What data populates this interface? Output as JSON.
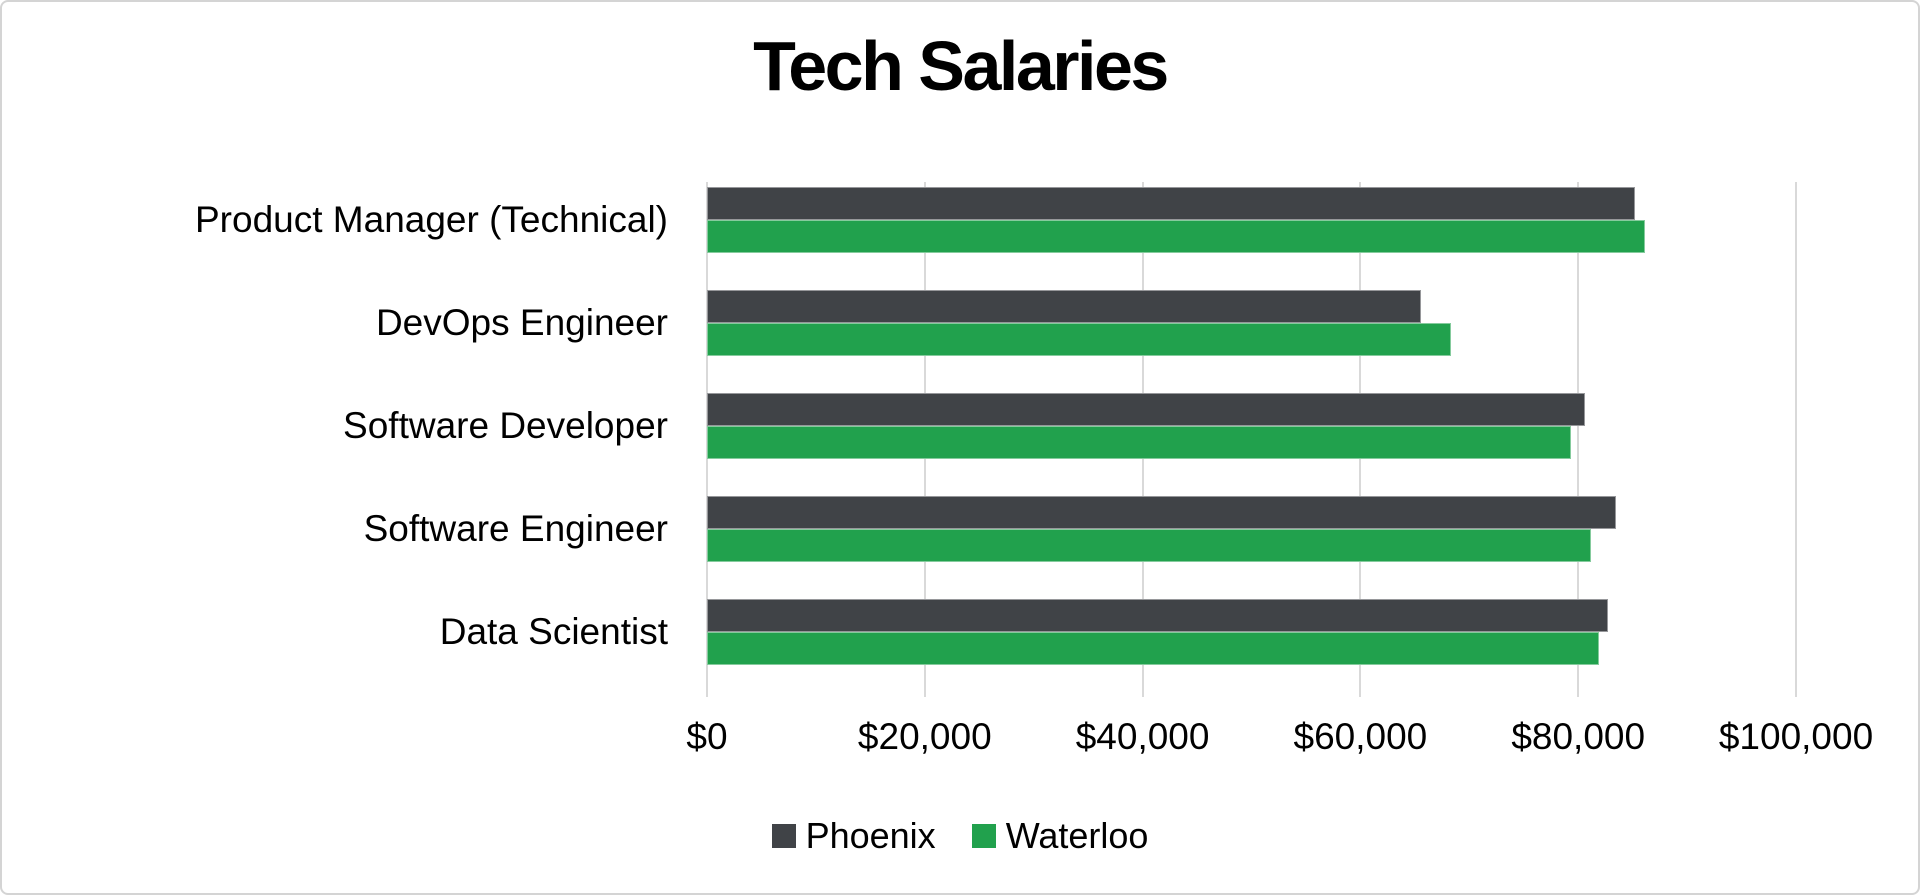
{
  "chart_data": {
    "type": "bar",
    "orientation": "horizontal",
    "title": "Tech Salaries",
    "categories": [
      "Product Manager (Technical)",
      "DevOps Engineer",
      "Software Developer",
      "Software Engineer",
      "Data Scientist"
    ],
    "series": [
      {
        "name": "Phoenix",
        "color": "#404347",
        "values": [
          85200,
          65600,
          80600,
          83500,
          82700
        ]
      },
      {
        "name": "Waterloo",
        "color": "#21A14D",
        "values": [
          86100,
          68300,
          79300,
          81200,
          81900
        ]
      }
    ],
    "xlim": [
      0,
      100000
    ],
    "xticks": {
      "values": [
        0,
        20000,
        40000,
        60000,
        80000,
        100000
      ],
      "labels": [
        "$0",
        "$20,000",
        "$40,000",
        "$60,000",
        "$80,000",
        "$100,000"
      ]
    },
    "ylabel": "",
    "xlabel": "",
    "grid": true,
    "gridline_color": "#d9d9d9",
    "background_color": "#ffffff",
    "legend_position": "bottom"
  }
}
